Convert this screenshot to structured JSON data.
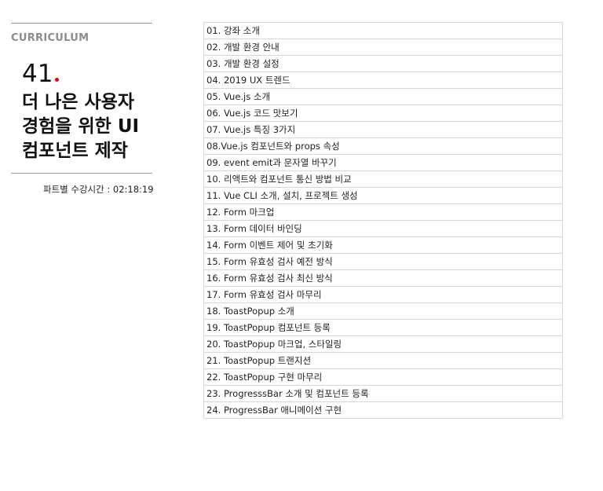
{
  "sidebar": {
    "section_label": "CURRICULUM",
    "part_number": "41",
    "part_title": "더 나은 사용자 경험을 위한 UI 컴포넌트 제작",
    "duration": "파트별 수강시간 : 02:18:19",
    "accent_color": "#e60012"
  },
  "lessons": [
    "01. 강좌 소개",
    "02. 개발 환경 안내",
    "03. 개발 환경 설정",
    "04. 2019 UX 트렌드",
    "05. Vue.js 소개",
    "06. Vue.js 코드 맛보기",
    "07. Vue.js 특징 3가지",
    "08.Vue.js 컴포넌트와 props 속성",
    "09. event emit과 문자열 바꾸기",
    "10. 리액트와 컴포넌트 통신 방법 비교",
    "11. Vue CLI 소개, 설치, 프로젝트 생성",
    "12. Form 마크업",
    "13. Form 데이터 바인딩",
    "14. Form 이벤트 제어 및 초기화",
    "15. Form 유효성 검사 예전 방식",
    "16. Form 유효성 검사 최신 방식",
    "17. Form 유효성 검사 마무리",
    "18. ToastPopup 소개",
    "19. ToastPopup 컴포넌트 등록",
    "20. ToastPopup 마크업, 스타일링",
    "21. ToastPopup 트랜지션",
    "22. ToastPopup 구현 마무리",
    "23. ProgresssBar 소개 및 컴포넌트 등록",
    "24. ProgressBar 애니메이션 구현"
  ]
}
